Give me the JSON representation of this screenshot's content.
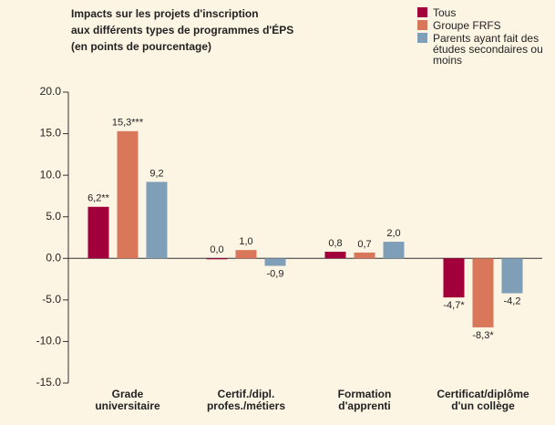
{
  "chart_data": {
    "type": "bar",
    "title": [
      "Impacts sur les projets d'inscription",
      "aux différents types de programmes d'ÉPS",
      "(en points de pourcentage)"
    ],
    "categories": [
      [
        "Grade",
        "universitaire"
      ],
      [
        "Certif./dipl.",
        "profes./métiers"
      ],
      [
        "Formation",
        "d'apprenti"
      ],
      [
        "Certificat/diplôme",
        "d'un collège"
      ]
    ],
    "series": [
      {
        "name": "Tous",
        "color": "#a1003b",
        "values": [
          6.2,
          0.0,
          0.8,
          -4.7
        ],
        "value_labels": [
          "6,2**",
          "0,0",
          "0,8",
          "-4,7*"
        ]
      },
      {
        "name": "Groupe FRFS",
        "color": "#d9775b",
        "values": [
          15.3,
          1.0,
          0.7,
          -8.3
        ],
        "value_labels": [
          "15,3***",
          "1,0",
          "0,7",
          "-8,3*"
        ]
      },
      {
        "name": "Parents ayant fait des études secondaires ou moins",
        "color": "#7f9fb8",
        "values": [
          9.2,
          -0.9,
          2.0,
          -4.2
        ],
        "value_labels": [
          "9,2",
          "-0,9",
          "2,0",
          "-4,2"
        ]
      }
    ],
    "ylim": [
      -15,
      20
    ],
    "yticks": [
      {
        "value": -15,
        "label": "-15.0"
      },
      {
        "value": -10,
        "label": "-10.0"
      },
      {
        "value": -5,
        "label": "-5.0"
      },
      {
        "value": 0,
        "label": "0.0"
      },
      {
        "value": 5,
        "label": "5.0"
      },
      {
        "value": 10,
        "label": "10.0"
      },
      {
        "value": 15,
        "label": "15.0"
      },
      {
        "value": 20,
        "label": "20.0"
      }
    ],
    "legend": "top-right",
    "grid": false
  }
}
